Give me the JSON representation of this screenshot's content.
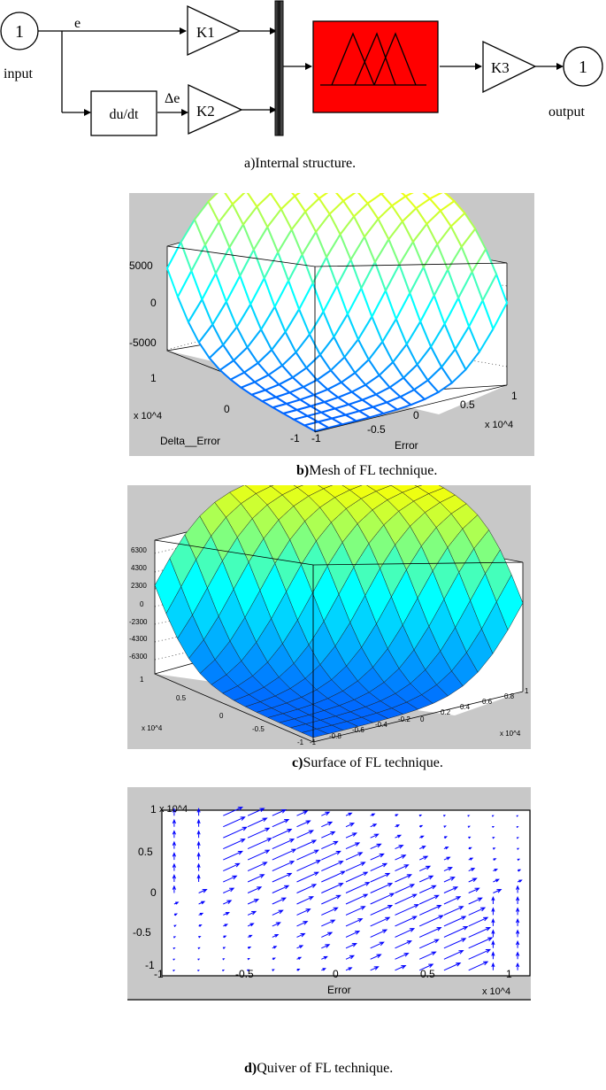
{
  "diagram": {
    "input_port": "1",
    "input_label": "input",
    "signal_e": "e",
    "signal_de": "Δe",
    "derivative_block": "du/dt",
    "gain1": "K1",
    "gain2": "K2",
    "gain3": "K3",
    "output_port": "1",
    "output_label": "output",
    "fuzzy_block_color": "#ff0000",
    "caption": "a)Internal structure."
  },
  "captions": {
    "b_letter": "b)",
    "b_text": "Mesh of FL technique.",
    "c_letter": "c)",
    "c_text": "Surface of FL technique.",
    "d_letter": "d)",
    "d_text": "Quiver of FL technique."
  },
  "chart_data": [
    {
      "type": "surface-mesh",
      "title": "Mesh of FL technique",
      "xlabel": "Error",
      "ylabel": "Delta__Error",
      "zlabel": "",
      "x_ticks": [
        "-1",
        "-0.5",
        "0",
        "0.5",
        "1"
      ],
      "x_exponent": "x 10^4",
      "y_ticks": [
        "-1",
        "0",
        "1"
      ],
      "y_exponent": "x 10^4",
      "z_ticks": [
        "-5000",
        "0",
        "5000"
      ],
      "xlim": [
        -10000,
        10000
      ],
      "ylim": [
        -10000,
        10000
      ],
      "zlim": [
        -7500,
        7500
      ],
      "colormap": "jet-like (blue low, cyan mid, yellow high)",
      "z_min": -7500,
      "z_max": 7500,
      "grid": true
    },
    {
      "type": "surface",
      "title": "Surface of FL technique",
      "xlabel": "",
      "ylabel": "",
      "x_ticks": [
        "-1",
        "-0.8",
        "-0.6",
        "-0.4",
        "-0.2",
        "0",
        "0.2",
        "0.4",
        "0.6",
        "0.8",
        "1"
      ],
      "x_exponent": "x 10^4",
      "y_ticks": [
        "-1",
        "-0.5",
        "0",
        "0.5",
        "1"
      ],
      "y_exponent": "x 10^4",
      "z_ticks": [
        "-6300",
        "-4300",
        "-2300",
        "0",
        "2300",
        "4300",
        "6300"
      ],
      "xlim": [
        -10000,
        10000
      ],
      "ylim": [
        -10000,
        10000
      ],
      "zlim": [
        -7500,
        7500
      ],
      "colormap": "jet-like",
      "grid": true
    },
    {
      "type": "quiver",
      "title": "Quiver of FL technique",
      "xlabel": "Error",
      "ylabel": "",
      "x_ticks": [
        "-1",
        "-0.5",
        "0",
        "0.5",
        "1"
      ],
      "x_exponent": "x 10^4",
      "y_ticks": [
        "-1",
        "-0.5",
        "0",
        "0.5",
        "1"
      ],
      "y_exponent": "x 10^4",
      "xlim": [
        -1,
        1
      ],
      "ylim": [
        -1,
        1
      ],
      "arrow_color": "#0000ff",
      "grid": false
    }
  ]
}
